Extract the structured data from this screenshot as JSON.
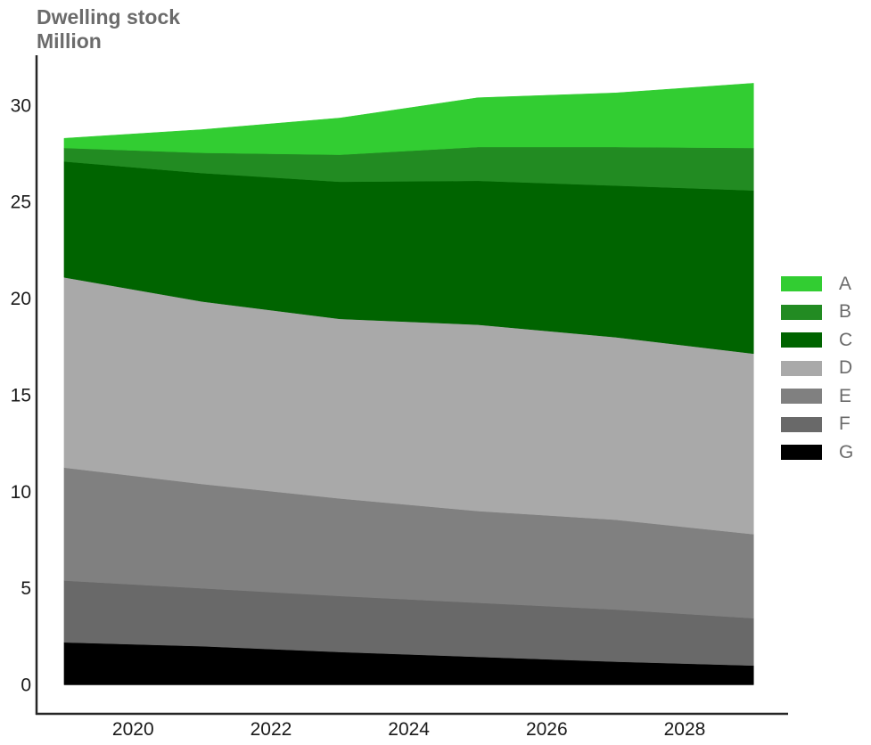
{
  "header": {
    "title_line1": "Dwelling stock",
    "title_line2": "Million"
  },
  "chart_data": {
    "type": "area",
    "stacked": true,
    "title": "Dwelling stock",
    "subtitle": "Million",
    "xlabel": "",
    "ylabel": "",
    "xlim": [
      2018.6,
      2029.5
    ],
    "ylim": [
      -1.5,
      32.6
    ],
    "x_ticks": [
      2020,
      2022,
      2024,
      2026,
      2028
    ],
    "y_ticks": [
      0,
      5,
      10,
      15,
      20,
      25,
      30
    ],
    "grid": false,
    "legend_position": "right",
    "x": [
      2019,
      2021,
      2023,
      2025,
      2027,
      2029
    ],
    "series": [
      {
        "name": "G",
        "color": "#000000",
        "values": [
          2.2,
          2.0,
          1.7,
          1.45,
          1.2,
          1.0
        ]
      },
      {
        "name": "F",
        "color": "#696969",
        "values": [
          3.2,
          3.0,
          2.9,
          2.8,
          2.7,
          2.45
        ]
      },
      {
        "name": "E",
        "color": "#808080",
        "values": [
          5.85,
          5.4,
          5.05,
          4.75,
          4.65,
          4.35
        ]
      },
      {
        "name": "D",
        "color": "#a9a9a9",
        "values": [
          9.85,
          9.45,
          9.3,
          9.65,
          9.45,
          9.35
        ]
      },
      {
        "name": "C",
        "color": "#006400",
        "values": [
          6.0,
          6.65,
          7.1,
          7.45,
          7.85,
          8.45
        ]
      },
      {
        "name": "B",
        "color": "#228b22",
        "values": [
          0.7,
          1.05,
          1.4,
          1.75,
          2.0,
          2.2
        ]
      },
      {
        "name": "A",
        "color": "#32cd32",
        "values": [
          0.5,
          1.2,
          1.9,
          2.55,
          2.8,
          3.35
        ]
      }
    ]
  }
}
